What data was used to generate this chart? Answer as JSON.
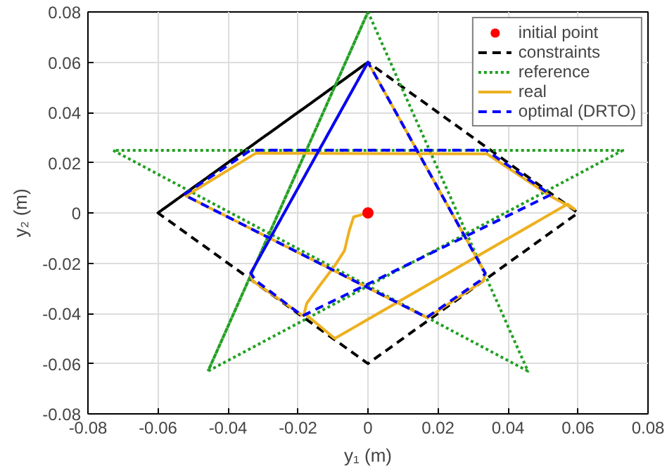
{
  "chart_data": {
    "type": "line",
    "xlabel": "y₁ (m)",
    "ylabel": "y₂ (m)",
    "xlim": [
      -0.08,
      0.08
    ],
    "ylim": [
      -0.08,
      0.08
    ],
    "xticks": [
      -0.08,
      -0.06,
      -0.04,
      -0.02,
      0,
      0.02,
      0.04,
      0.06,
      0.08
    ],
    "yticks": [
      -0.08,
      -0.06,
      -0.04,
      -0.02,
      0,
      0.02,
      0.04,
      0.06,
      0.08
    ],
    "grid": true,
    "legend": "top right",
    "series": [
      {
        "name": "initial point",
        "type": "scatter",
        "marker": "circle",
        "color": "#ff0000",
        "x": [
          0
        ],
        "values": [
          0
        ]
      },
      {
        "name": "constraints",
        "type": "line",
        "line_style": "dashed",
        "color": "#000000",
        "x": [
          -0.06,
          0,
          0.06,
          0,
          -0.06,
          0
        ],
        "values": [
          0,
          0.06,
          0,
          -0.06,
          0,
          0.06
        ]
      },
      {
        "name": "reference",
        "type": "line",
        "line_style": "dotted",
        "color": "#22a022",
        "x": [
          0,
          -0.0457,
          0.0728,
          -0.0728,
          0.0457,
          0,
          -0.0457
        ],
        "values": [
          0.08,
          -0.063,
          0.0249,
          0.0249,
          -0.063,
          0.08,
          -0.063
        ]
      },
      {
        "name": "real",
        "type": "line",
        "line_style": "solid",
        "color": "#edb120",
        "x": [
          0,
          -0.0041,
          -0.0054,
          -0.0067,
          -0.0094,
          -0.0135,
          -0.0175,
          -0.0182,
          -0.0095,
          0.057,
          0.059,
          0.052,
          0.034,
          -0.032,
          -0.052,
          0.017,
          0.033,
          0.0335,
          0,
          -0.0335,
          -0.033,
          -0.0185
        ],
        "values": [
          0,
          -0.0016,
          -0.0073,
          -0.015,
          -0.0208,
          -0.0284,
          -0.036,
          -0.0399,
          -0.05,
          0.0035,
          0.0015,
          0.0068,
          0.0235,
          0.0238,
          0.0068,
          -0.0418,
          -0.027,
          -0.024,
          0.06,
          -0.024,
          -0.027,
          -0.041
        ]
      },
      {
        "name": "optimal (DRTO)",
        "type": "line",
        "line_style": "dashed",
        "color": "#0000ff",
        "x": [
          0,
          -0.0335,
          -0.032,
          -0.0187,
          0.0522,
          0.0337,
          -0.0335,
          -0.0526,
          0.0168,
          0.032,
          0.0335,
          0,
          -0.0335
        ],
        "values": [
          0.06,
          -0.024,
          -0.027,
          -0.041,
          0.0072,
          0.025,
          0.025,
          0.0072,
          -0.0416,
          -0.027,
          -0.024,
          0.06,
          -0.024
        ]
      }
    ]
  }
}
